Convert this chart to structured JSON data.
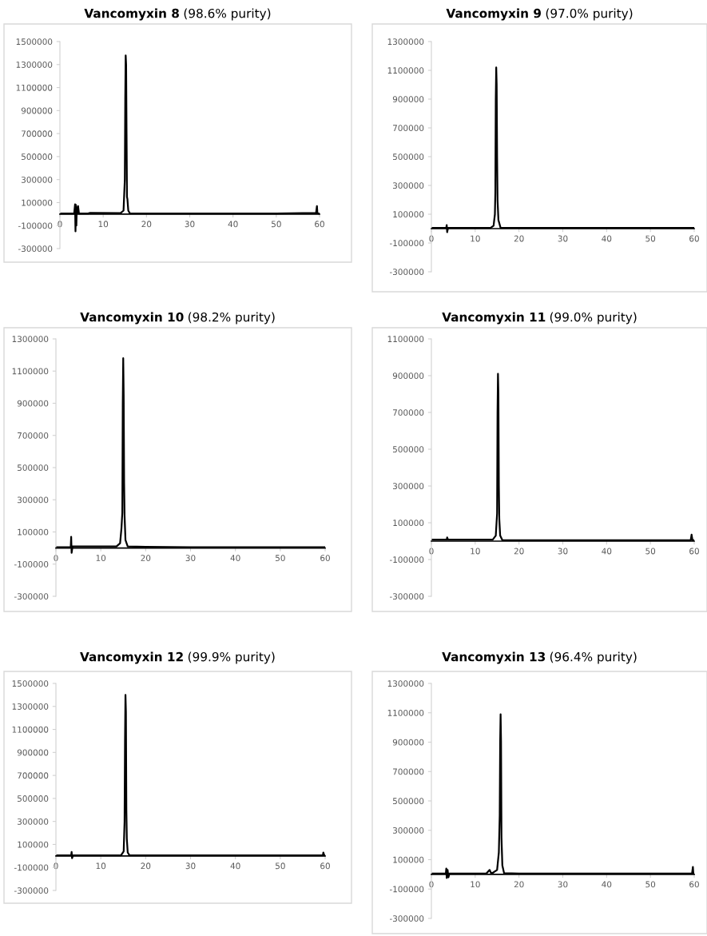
{
  "chart_data": [
    {
      "type": "line",
      "title": "Vancomyxin 8",
      "subtitle": "(98.6% purity)",
      "xlim": [
        0,
        60
      ],
      "xticks": [
        0,
        10,
        20,
        30,
        40,
        50,
        60
      ],
      "ylim": [
        -300000,
        1500000
      ],
      "yticks": [
        -300000,
        -100000,
        100000,
        300000,
        500000,
        700000,
        900000,
        1100000,
        1300000,
        1500000
      ],
      "grid": false,
      "legend": false,
      "series": [
        {
          "color": "#000000",
          "x": [
            0,
            3.3,
            3.5,
            3.6,
            3.7,
            3.8,
            3.9,
            4.0,
            4.2,
            4.4,
            6.5,
            7.0,
            14.0,
            14.7,
            15.0,
            15.1,
            15.2,
            15.3,
            15.4,
            15.5,
            15.6,
            15.8,
            16.2,
            20,
            30,
            40,
            50,
            59.2,
            59.4,
            59.5,
            59.7,
            60
          ],
          "values": [
            5000,
            5000,
            85000,
            -150000,
            80000,
            -100000,
            60000,
            5000,
            70000,
            5000,
            5000,
            10000,
            8000,
            30000,
            300000,
            1000000,
            1380000,
            1300000,
            700000,
            150000,
            130000,
            30000,
            5000,
            5000,
            5000,
            5000,
            5000,
            10000,
            70000,
            10000,
            5000,
            5000
          ]
        }
      ]
    },
    {
      "type": "line",
      "title": "Vancomyxin 9",
      "subtitle": "(97.0% purity)",
      "xlim": [
        0,
        60
      ],
      "xticks": [
        0,
        10,
        20,
        30,
        40,
        50,
        60
      ],
      "ylim": [
        -300000,
        1300000
      ],
      "yticks": [
        -300000,
        -100000,
        100000,
        300000,
        500000,
        700000,
        900000,
        1100000,
        1300000
      ],
      "grid": false,
      "legend": false,
      "series": [
        {
          "color": "#000000",
          "x": [
            0,
            3.4,
            3.5,
            3.6,
            3.8,
            13.5,
            14.2,
            14.5,
            14.6,
            14.7,
            14.8,
            14.9,
            15.0,
            15.1,
            15.3,
            15.8,
            20,
            30,
            40,
            50,
            60
          ],
          "values": [
            5000,
            5000,
            25000,
            -25000,
            5000,
            5000,
            20000,
            100000,
            250000,
            900000,
            1120000,
            1000000,
            500000,
            200000,
            60000,
            5000,
            5000,
            5000,
            5000,
            5000,
            5000
          ]
        }
      ]
    },
    {
      "type": "line",
      "title": "Vancomyxin 10",
      "subtitle": "(98.2% purity)",
      "xlim": [
        0,
        60
      ],
      "xticks": [
        0,
        10,
        20,
        30,
        40,
        50,
        60
      ],
      "ylim": [
        -300000,
        1300000
      ],
      "yticks": [
        -300000,
        -100000,
        100000,
        300000,
        500000,
        700000,
        900000,
        1100000,
        1300000
      ],
      "grid": false,
      "legend": false,
      "series": [
        {
          "color": "#000000",
          "x": [
            0,
            3.3,
            3.4,
            3.5,
            3.7,
            13.5,
            14.3,
            14.6,
            14.8,
            14.9,
            15.0,
            15.1,
            15.2,
            15.3,
            15.5,
            16.0,
            20,
            30,
            40,
            50,
            60
          ],
          "values": [
            5000,
            5000,
            70000,
            -30000,
            10000,
            10000,
            30000,
            120000,
            220000,
            900000,
            1180000,
            950000,
            400000,
            200000,
            50000,
            10000,
            8000,
            5000,
            5000,
            5000,
            5000
          ]
        }
      ]
    },
    {
      "type": "line",
      "title": "Vancomyxin 11",
      "subtitle": "(99.0% purity)",
      "xlim": [
        0,
        60
      ],
      "xticks": [
        0,
        10,
        20,
        30,
        40,
        50,
        60
      ],
      "ylim": [
        -300000,
        1100000
      ],
      "yticks": [
        -300000,
        -100000,
        100000,
        300000,
        500000,
        700000,
        900000,
        1100000
      ],
      "grid": false,
      "legend": false,
      "series": [
        {
          "color": "#000000",
          "x": [
            0,
            3.5,
            3.6,
            3.8,
            14.0,
            14.7,
            15.0,
            15.1,
            15.2,
            15.3,
            15.4,
            15.5,
            15.7,
            16.2,
            20,
            30,
            40,
            50,
            59.2,
            59.4,
            59.6,
            60
          ],
          "values": [
            8000,
            8000,
            20000,
            8000,
            8000,
            30000,
            150000,
            700000,
            910000,
            800000,
            300000,
            120000,
            30000,
            5000,
            5000,
            5000,
            5000,
            5000,
            5000,
            35000,
            5000,
            5000
          ]
        }
      ]
    },
    {
      "type": "line",
      "title": "Vancomyxin 12",
      "subtitle": "(99.9% purity)",
      "xlim": [
        0,
        60
      ],
      "xticks": [
        0,
        10,
        20,
        30,
        40,
        50,
        60
      ],
      "ylim": [
        -300000,
        1500000
      ],
      "yticks": [
        -300000,
        -100000,
        100000,
        300000,
        500000,
        700000,
        900000,
        1100000,
        1300000,
        1500000
      ],
      "grid": false,
      "legend": false,
      "series": [
        {
          "color": "#000000",
          "x": [
            0,
            3.4,
            3.5,
            3.6,
            3.8,
            14.5,
            15.1,
            15.3,
            15.4,
            15.5,
            15.6,
            15.7,
            15.8,
            16.0,
            16.4,
            20,
            30,
            40,
            50,
            59.5,
            59.6,
            59.8,
            60
          ],
          "values": [
            5000,
            5000,
            35000,
            -20000,
            5000,
            5000,
            40000,
            300000,
            1000000,
            1400000,
            1250000,
            400000,
            150000,
            30000,
            5000,
            5000,
            5000,
            5000,
            5000,
            5000,
            30000,
            5000,
            5000
          ]
        }
      ]
    },
    {
      "type": "line",
      "title": "Vancomyxin 13",
      "subtitle": "(96.4% purity)",
      "xlim": [
        0,
        60
      ],
      "xticks": [
        0,
        10,
        20,
        30,
        40,
        50,
        60
      ],
      "ylim": [
        -300000,
        1300000
      ],
      "yticks": [
        -300000,
        -100000,
        100000,
        300000,
        500000,
        700000,
        900000,
        1100000,
        1300000
      ],
      "grid": false,
      "legend": false,
      "series": [
        {
          "color": "#000000",
          "x": [
            0,
            3.3,
            3.4,
            3.5,
            3.7,
            3.9,
            4.1,
            12.5,
            13.3,
            13.6,
            14.0,
            15.0,
            15.4,
            15.6,
            15.7,
            15.8,
            15.9,
            16.0,
            16.2,
            16.6,
            20,
            30,
            40,
            50,
            59.5,
            59.7,
            59.8,
            60
          ],
          "values": [
            5000,
            5000,
            40000,
            -25000,
            30000,
            -20000,
            5000,
            5000,
            30000,
            10000,
            10000,
            30000,
            150000,
            400000,
            900000,
            1090000,
            900000,
            250000,
            60000,
            8000,
            5000,
            5000,
            5000,
            5000,
            5000,
            50000,
            5000,
            5000
          ]
        }
      ]
    }
  ]
}
